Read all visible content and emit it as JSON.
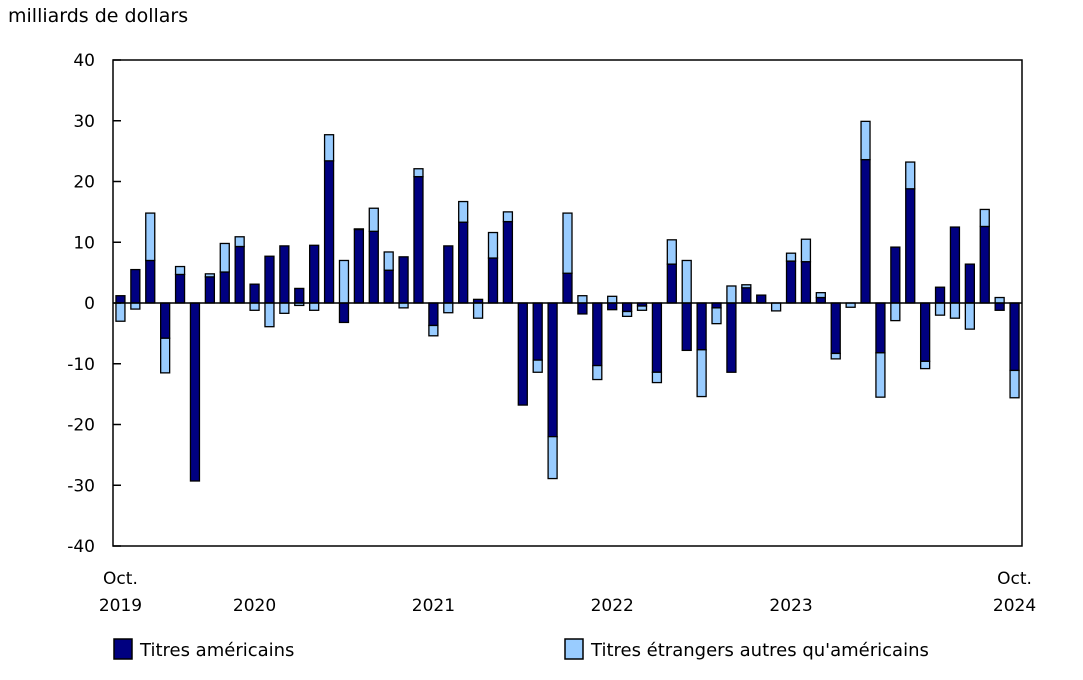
{
  "chart_data": {
    "type": "bar",
    "stacked": true,
    "ylabel": "milliards de dollars",
    "ylim": [
      -40,
      40
    ],
    "yticks": [
      40,
      30,
      20,
      10,
      0,
      -10,
      -20,
      -30,
      -40
    ],
    "ytick_labels": [
      "40",
      "30",
      "20",
      "10",
      "0",
      "-10",
      "-20",
      "-30",
      "-40"
    ],
    "x_start": "Oct. 2019",
    "x_end": "Oct. 2024",
    "x_labels": [
      {
        "index": 0,
        "line1": "Oct.",
        "line2": "2019"
      },
      {
        "index": 9,
        "line1": "",
        "line2": "2020"
      },
      {
        "index": 21,
        "line1": "",
        "line2": "2021"
      },
      {
        "index": 33,
        "line1": "",
        "line2": "2022"
      },
      {
        "index": 45,
        "line1": "",
        "line2": "2023"
      },
      {
        "index": 60,
        "line1": "Oct.",
        "line2": "2024"
      }
    ],
    "legend_position": "bottom",
    "series": [
      {
        "name": "Titres américains",
        "color": "#000080",
        "values": [
          1.2,
          5.5,
          7.0,
          -5.8,
          4.7,
          -29.3,
          4.3,
          5.1,
          9.3,
          3.1,
          7.7,
          9.4,
          2.4,
          9.5,
          23.4,
          -3.2,
          12.1,
          11.8,
          5.4,
          7.6,
          20.8,
          -3.7,
          9.4,
          13.3,
          0.6,
          7.4,
          13.4,
          -16.8,
          -9.4,
          -22.0,
          4.9,
          -1.8,
          -10.3,
          -1.1,
          -1.4,
          -0.5,
          -11.4,
          6.4,
          -7.8,
          -7.7,
          -0.8,
          -11.4,
          2.5,
          1.3,
          0.0,
          6.9,
          6.8,
          0.9,
          -8.3,
          0.0,
          23.6,
          -8.2,
          9.2,
          18.8,
          -9.6,
          2.6,
          12.5,
          6.4,
          12.6,
          -1.2,
          -11.1
        ]
      },
      {
        "name": "Titres étrangers autres qu'américains",
        "color": "#99ccff",
        "values": [
          -3.0,
          -1.0,
          7.8,
          -5.7,
          1.3,
          0.0,
          0.5,
          4.7,
          1.6,
          -1.2,
          -3.9,
          -1.7,
          -0.4,
          -1.2,
          4.3,
          7.0,
          0.1,
          3.8,
          3.0,
          -0.8,
          1.3,
          -1.7,
          -1.6,
          3.4,
          -2.5,
          4.2,
          1.6,
          0.0,
          -2.0,
          -6.9,
          9.9,
          1.2,
          -2.3,
          1.1,
          -0.8,
          -0.7,
          -1.7,
          4.0,
          7.0,
          -7.7,
          -2.6,
          2.8,
          0.5,
          0.0,
          -1.3,
          1.3,
          3.7,
          0.8,
          -0.9,
          -0.7,
          6.3,
          -7.3,
          -2.9,
          4.4,
          -1.2,
          -2.0,
          -2.5,
          -4.3,
          2.8,
          0.9,
          -4.5
        ]
      }
    ]
  }
}
